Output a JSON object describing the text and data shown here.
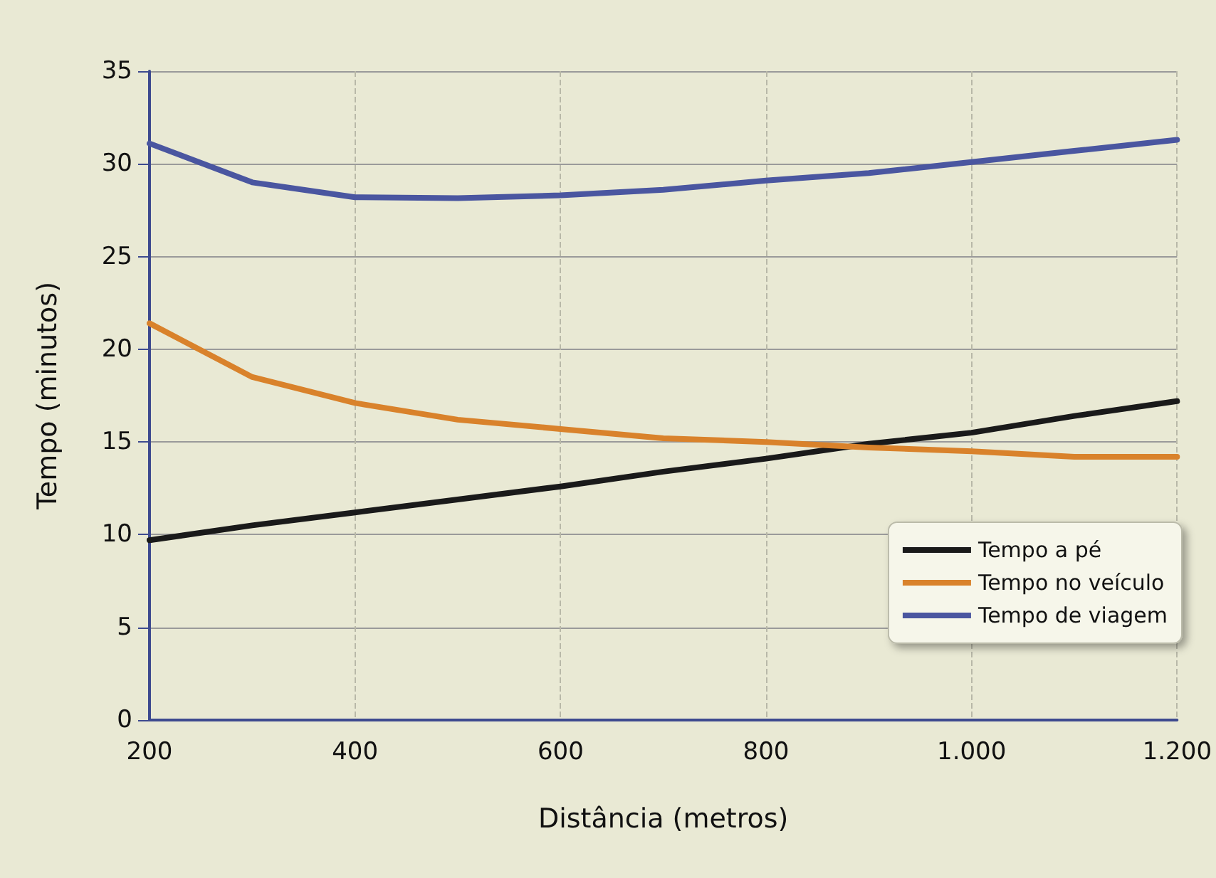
{
  "chart_data": {
    "type": "line",
    "xlabel": "Distância (metros)",
    "ylabel": "Tempo (minutos)",
    "x": [
      200,
      300,
      400,
      500,
      600,
      700,
      800,
      900,
      1000,
      1100,
      1200
    ],
    "xlim": [
      200,
      1200
    ],
    "xticks": [
      200,
      400,
      600,
      800,
      {
        "value": 1000,
        "label": "1.000"
      },
      {
        "value": 1200,
        "label": "1.200"
      }
    ],
    "ylim": [
      0,
      35
    ],
    "yticks": [
      0,
      5,
      10,
      15,
      20,
      25,
      30,
      35
    ],
    "grid": true,
    "legend": "bottom right",
    "marker": "none",
    "line_style": "solid",
    "series": [
      {
        "name": "Tempo a pé",
        "color": "#1a1a1a",
        "values": [
          9.7,
          10.5,
          11.2,
          11.9,
          12.6,
          13.4,
          14.1,
          14.9,
          15.5,
          16.4,
          17.2
        ]
      },
      {
        "name": "Tempo no veículo",
        "color": "#d9822b",
        "values": [
          21.4,
          18.5,
          17.1,
          16.2,
          15.7,
          15.2,
          15.0,
          14.7,
          14.5,
          14.2,
          14.2
        ]
      },
      {
        "name": "Tempo de viagem",
        "color": "#4a56a0",
        "values": [
          31.1,
          29.0,
          28.2,
          28.15,
          28.3,
          28.6,
          29.1,
          29.5,
          30.1,
          30.7,
          31.3
        ]
      }
    ]
  }
}
